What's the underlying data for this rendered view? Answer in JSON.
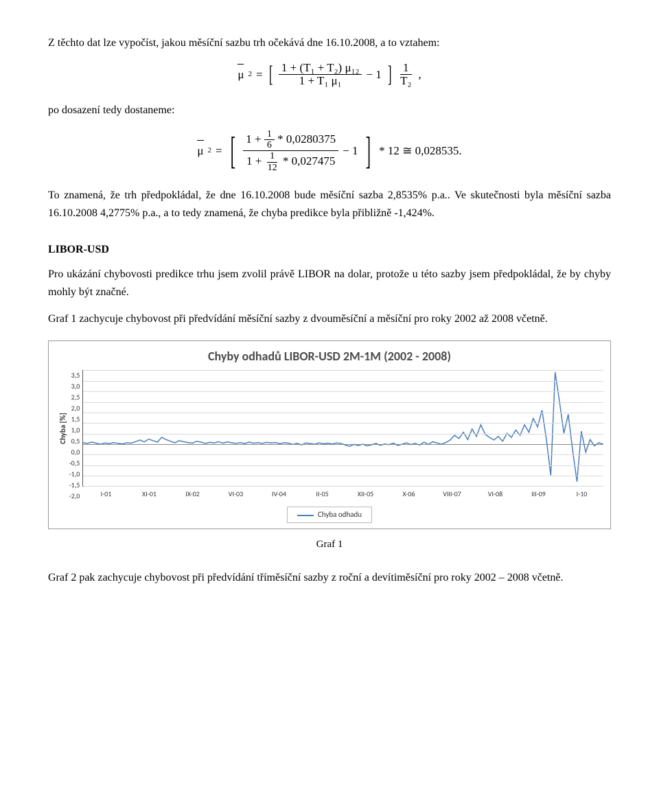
{
  "intro": "Z těchto dat lze vypočíst, jakou měsíční sazbu trh očekává dne 16.10.2008, a to vztahem:",
  "formula1": {
    "lhs_mu": "μ",
    "lhs_sub": "2",
    "eq": "=",
    "num": "1 + (T₁ + T₂) μ₁₂",
    "den": "1 + T₁ μ₁",
    "minus1": "− 1",
    "tail_num": "1",
    "tail_den": "T₂",
    "comma": ","
  },
  "after_formula1": "po dosazení tedy dostaneme:",
  "formula2": {
    "lhs_mu": "μ",
    "lhs_sub": "2",
    "eq": "=",
    "num_top": "1 + ",
    "frac1_num": "1",
    "frac1_den": "6",
    "num_tail": " * 0,0280375",
    "den_top": "1 + ",
    "frac2_num": "1",
    "frac2_den": "12",
    "den_tail": " * 0,027475",
    "minus1": "− 1",
    "tail": "* 12 ≅ 0,028535."
  },
  "para2": "To znamená, že trh předpokládal, že dne 16.10.2008 bude měsíční sazba 2,8535% p.a.. Ve skutečnosti byla měsíční sazba 16.10.2008 4,2775% p.a., a to tedy znamená, že chyba predikce byla přibližně -1,424%.",
  "section_title": "LIBOR-USD",
  "para3": "Pro ukázání chybovosti predikce trhu jsem zvolil právě LIBOR na dolar, protože u této sazby jsem předpokládal, že by chyby mohly být značné.",
  "para4": "Graf 1 zachycuje chybovost při předvídání měsíční sazby z dvouměsíční a měsíční pro roky 2002 až 2008 včetně.",
  "chart": {
    "title": "Chyby odhadů LIBOR-USD 2M-1M (2002 - 2008)",
    "title_color": "#4a4a4a",
    "y_label": "Chyba [%]",
    "y_ticks": [
      "3,5",
      "3,0",
      "2,5",
      "2,0",
      "1,5",
      "1,0",
      "0,5",
      "0,0",
      "-0,5",
      "-1,0",
      "-1,5",
      "-2,0"
    ],
    "ylim": [
      -2.0,
      3.5
    ],
    "x_ticks": [
      "I-01",
      "XI-01",
      "IX-02",
      "VI-03",
      "IV-04",
      "II-05",
      "XII-05",
      "X-06",
      "VIII-07",
      "VI-08",
      "III-09",
      "I-10"
    ],
    "line_color": "#4a7ebb",
    "grid_color": "#d9d9d9",
    "background_color": "#ffffff",
    "legend_label": "Chyba odhadu",
    "series": [
      0.05,
      0.02,
      0.08,
      0.03,
      -0.02,
      0.04,
      0.01,
      0.06,
      0.02,
      -0.01,
      0.05,
      0.03,
      0.1,
      0.18,
      0.09,
      0.22,
      0.15,
      0.08,
      0.31,
      0.2,
      0.12,
      0.05,
      0.15,
      0.1,
      0.06,
      0.03,
      0.12,
      0.08,
      0.02,
      0.07,
      0.04,
      0.1,
      0.03,
      0.09,
      0.05,
      0.02,
      0.06,
      0.01,
      0.08,
      0.03,
      0.05,
      0.02,
      0.07,
      0.04,
      0.06,
      0.01,
      0.05,
      0.03,
      -0.03,
      0.02,
      -0.05,
      0.04,
      0.01,
      -0.02,
      0.05,
      0.0,
      0.03,
      -0.01,
      0.04,
      0.02,
      -0.06,
      -0.12,
      -0.03,
      -0.08,
      -0.02,
      -0.1,
      -0.05,
      0.02,
      -0.07,
      -0.01,
      -0.04,
      0.03,
      -0.08,
      -0.02,
      0.05,
      -0.04,
      0.02,
      -0.06,
      0.08,
      -0.03,
      0.1,
      0.04,
      -0.02,
      0.06,
      0.18,
      0.4,
      0.25,
      0.55,
      0.2,
      0.7,
      0.35,
      0.9,
      0.45,
      0.3,
      0.18,
      0.35,
      0.12,
      0.5,
      0.3,
      0.65,
      0.4,
      0.9,
      0.55,
      1.2,
      0.8,
      1.6,
      0.2,
      -1.5,
      3.4,
      2.0,
      0.5,
      1.4,
      -0.3,
      -1.8,
      0.6,
      -0.4,
      0.2,
      -0.1,
      0.05,
      -0.02
    ]
  },
  "caption1": "Graf 1",
  "para5": "Graf 2 pak zachycuje chybovost při předvídání tříměsíční sazby z roční a devítiměsíční pro roky 2002 – 2008 včetně."
}
